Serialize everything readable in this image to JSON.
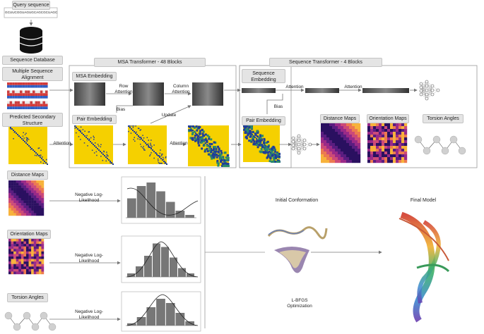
{
  "labels": {
    "query_sequence": "Query sequence",
    "sequence_string": "GCUUCGGUAGUGCAGCGCUAGC",
    "sequence_database": "Sequence Database",
    "msa_title_1": "Multiple Sequence",
    "msa_title_2": "Alignment",
    "secondary_1": "Predicted Secondary",
    "secondary_2": "Structure",
    "msa_transformer": "MSA Transformer - 48 Blocks",
    "seq_transformer": "Sequence Transformer - 4 Blocks",
    "msa_embedding": "MSA Embedding",
    "pair_embedding": "Pair Embedding",
    "pair_embedding_2": "Pair Embedding",
    "seq_embedding_1": "Sequence",
    "seq_embedding_2": "Embedding",
    "row_attention_1": "Row",
    "row_attention_2": "Attention",
    "column_attention_1": "Column",
    "column_attention_2": "Attention",
    "attention_1": "Attention",
    "attention_2": "Attention",
    "attention_3": "Attention",
    "attention_4": "Attention",
    "bias_1": "Bias",
    "bias_2": "Bias",
    "update": "Update",
    "distance_maps_top": "Distance Maps",
    "orientation_maps_top": "Orientation Maps",
    "torsion_angles_top": "Torsion Angles",
    "distance_maps": "Distance Maps",
    "orientation_maps": "Orientation Maps",
    "torsion_angles": "Torsion Angles",
    "nll_1a": "Negative Log-",
    "nll_1b": "Likelihood",
    "nll_2a": "Negative Log-",
    "nll_2b": "Likelihood",
    "nll_3a": "Negative Log-",
    "nll_3b": "Likelihood",
    "initial_conformation": "Initial Conformation",
    "lbfgs_1": "L-BFGS",
    "lbfgs_2": "Optimization",
    "final_model": "Final Model"
  },
  "colors": {
    "label_fill": "#e4e4e4",
    "contact_map_bg": "#f5d000",
    "contact_map_ink": "#1f3d9a",
    "heat_dark": "#3a1b7a",
    "heat_mid": "#c03a8a",
    "heat_light": "#f7a23b",
    "histogram_bar": "#777777"
  }
}
